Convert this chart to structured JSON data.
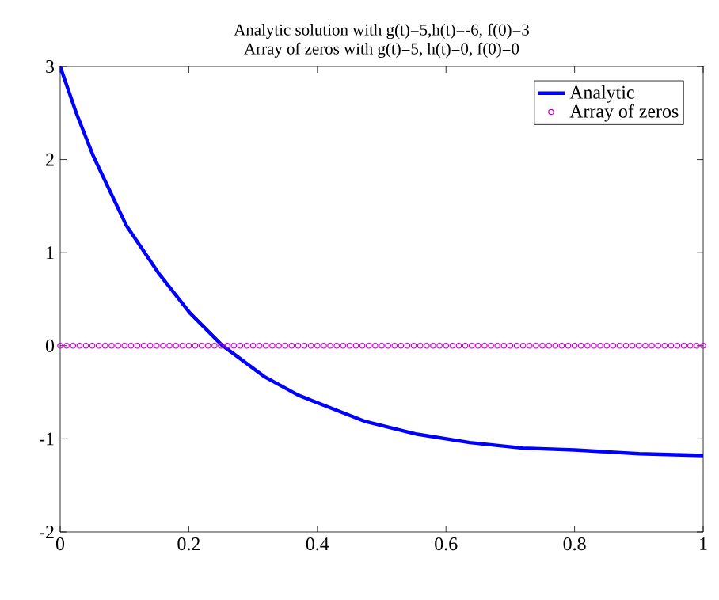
{
  "chart_data": {
    "type": "line",
    "title": "Analytic solution with g(t)=5,h(t)=-6, f(0)=3",
    "subtitle": "Array of zeros with g(t)=5, h(t)=0, f(0)=0",
    "xlim": [
      0,
      1
    ],
    "ylim": [
      -2,
      3
    ],
    "xticks": [
      0,
      0.2,
      0.4,
      0.6,
      0.8,
      1
    ],
    "yticks": [
      -2,
      -1,
      0,
      1,
      2,
      3
    ],
    "legend": "top right",
    "grid": false,
    "series": [
      {
        "name": "Analytic",
        "color": "#0000ff",
        "marker": "none",
        "line_style": "solid",
        "x": [
          0,
          0.025,
          0.052,
          0.103,
          0.153,
          0.202,
          0.251,
          0.317,
          0.37,
          0.399,
          0.473,
          0.555,
          0.637,
          0.719,
          0.8,
          0.9,
          1
        ],
        "values": [
          3,
          2.5,
          2.03,
          1.29,
          0.78,
          0.35,
          0.01,
          -0.33,
          -0.53,
          -0.61,
          -0.81,
          -0.95,
          -1.04,
          -1.1,
          -1.12,
          -1.16,
          -1.18
        ]
      },
      {
        "name": "Array of zeros",
        "type": "scatter",
        "color": "#cc00cc",
        "marker": "circle",
        "x": [
          0,
          0.01,
          0.02,
          0.03,
          0.04,
          0.05,
          0.06,
          0.07,
          0.08,
          0.09,
          0.1,
          0.11,
          0.12,
          0.13,
          0.14,
          0.15,
          0.16,
          0.17,
          0.18,
          0.19,
          0.2,
          0.21,
          0.22,
          0.23,
          0.24,
          0.25,
          0.26,
          0.27,
          0.28,
          0.29,
          0.3,
          0.31,
          0.32,
          0.33,
          0.34,
          0.35,
          0.36,
          0.37,
          0.38,
          0.39,
          0.4,
          0.41,
          0.42,
          0.43,
          0.44,
          0.45,
          0.46,
          0.47,
          0.48,
          0.49,
          0.5,
          0.51,
          0.52,
          0.53,
          0.54,
          0.55,
          0.56,
          0.57,
          0.58,
          0.59,
          0.6,
          0.61,
          0.62,
          0.63,
          0.64,
          0.65,
          0.66,
          0.67,
          0.68,
          0.69,
          0.7,
          0.71,
          0.72,
          0.73,
          0.74,
          0.75,
          0.76,
          0.77,
          0.78,
          0.79,
          0.8,
          0.81,
          0.82,
          0.83,
          0.84,
          0.85,
          0.86,
          0.87,
          0.88,
          0.89,
          0.9,
          0.91,
          0.92,
          0.93,
          0.94,
          0.95,
          0.96,
          0.97,
          0.98,
          0.99,
          1
        ],
        "values": [
          0,
          0,
          0,
          0,
          0,
          0,
          0,
          0,
          0,
          0,
          0,
          0,
          0,
          0,
          0,
          0,
          0,
          0,
          0,
          0,
          0,
          0,
          0,
          0,
          0,
          0,
          0,
          0,
          0,
          0,
          0,
          0,
          0,
          0,
          0,
          0,
          0,
          0,
          0,
          0,
          0,
          0,
          0,
          0,
          0,
          0,
          0,
          0,
          0,
          0,
          0,
          0,
          0,
          0,
          0,
          0,
          0,
          0,
          0,
          0,
          0,
          0,
          0,
          0,
          0,
          0,
          0,
          0,
          0,
          0,
          0,
          0,
          0,
          0,
          0,
          0,
          0,
          0,
          0,
          0,
          0,
          0,
          0,
          0,
          0,
          0,
          0,
          0,
          0,
          0,
          0,
          0,
          0,
          0,
          0,
          0,
          0,
          0,
          0,
          0,
          0
        ]
      }
    ]
  }
}
